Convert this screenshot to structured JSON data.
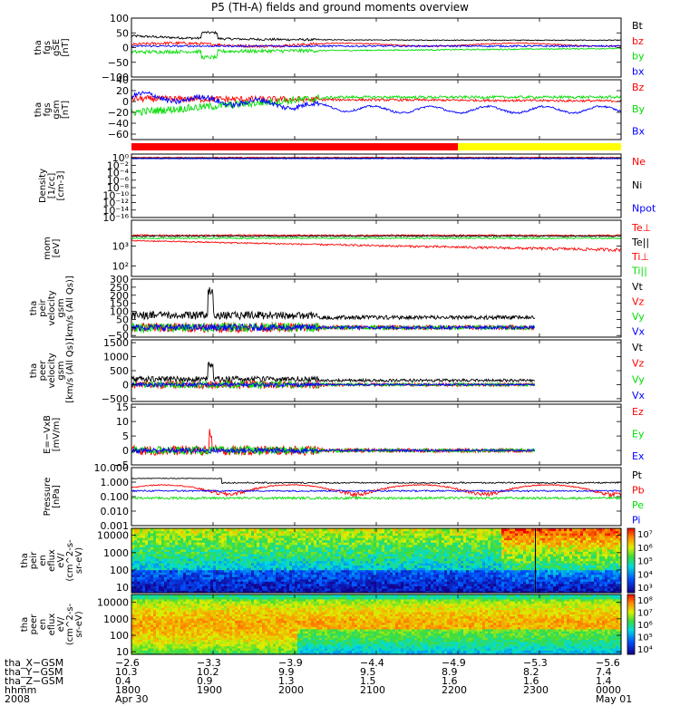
{
  "title": "P5 (TH-A) fields and ground moments overview",
  "colors": {
    "black": "#000000",
    "red": "#ff0000",
    "green": "#00dd00",
    "blue": "#0000ff",
    "yellow": "#ffff00"
  },
  "chart_data": {
    "type": "line",
    "x_time_ticks": [
      "1800",
      "1900",
      "2000",
      "2100",
      "2200",
      "2300",
      "0000"
    ],
    "mode_bar": {
      "segments": [
        {
          "color": "red",
          "from": "1800",
          "to": "2200"
        },
        {
          "color": "yellow",
          "from": "2200",
          "to": "0000"
        }
      ]
    },
    "panels": [
      {
        "id": "fgs-gse",
        "ylabel": [
          "tha",
          "fgs",
          "gSE",
          "[nT]"
        ],
        "ticks": [
          "100",
          "50",
          "0",
          "−50",
          "−100"
        ],
        "ylim": [
          -100,
          100
        ],
        "scale": "linear",
        "legend": [
          {
            "name": "Bt",
            "color": "black"
          },
          {
            "name": "bz",
            "color": "red"
          },
          {
            "name": "by",
            "color": "green"
          },
          {
            "name": "bx",
            "color": "blue"
          }
        ]
      },
      {
        "id": "fgs-gsm",
        "ylabel": [
          "tha",
          "fgs",
          "gsm",
          "[nT]"
        ],
        "ticks": [
          "40",
          "20",
          "0",
          "−20",
          "−40",
          "−60"
        ],
        "ylim": [
          -70,
          40
        ],
        "scale": "linear",
        "legend": [
          {
            "name": "Bz",
            "color": "red"
          },
          {
            "name": "By",
            "color": "green"
          },
          {
            "name": "Bx",
            "color": "blue"
          }
        ]
      },
      {
        "id": "density",
        "ylabel": [
          "Density",
          "[1/cc]",
          "[cm-3]"
        ],
        "ticks": [
          "10⁰",
          "10⁻²",
          "10⁻⁴",
          "10⁻⁶",
          "10⁻⁸",
          "10⁻¹⁰",
          "10⁻¹²",
          "10⁻¹⁴",
          "10⁻¹⁶"
        ],
        "ylim": [
          "1e-16",
          "1e1"
        ],
        "scale": "log",
        "legend": [
          {
            "name": "Ne",
            "color": "red"
          },
          {
            "name": "Ni",
            "color": "black"
          },
          {
            "name": "Npot",
            "color": "blue"
          }
        ]
      },
      {
        "id": "temperature",
        "ylabel": [
          "mom",
          "[eV]"
        ],
        "ticks": [
          "10³",
          "10²"
        ],
        "ylim": [
          "30",
          "2e4"
        ],
        "scale": "log",
        "legend": [
          {
            "name": "Te⊥",
            "color": "red"
          },
          {
            "name": "Te||",
            "color": "black"
          },
          {
            "name": "Ti⊥",
            "color": "red"
          },
          {
            "name": "Ti||",
            "color": "green"
          }
        ]
      },
      {
        "id": "peir-velocity",
        "ylabel": [
          "tha",
          "peir",
          "velocity",
          "gsm",
          "[km/s (All Qs)]"
        ],
        "ticks": [
          "300",
          "250",
          "200",
          "150",
          "100",
          "50",
          "0",
          "−50"
        ],
        "ylim": [
          -60,
          300
        ],
        "scale": "linear",
        "legend": [
          {
            "name": "Vt",
            "color": "black"
          },
          {
            "name": "Vz",
            "color": "red"
          },
          {
            "name": "Vy",
            "color": "green"
          },
          {
            "name": "Vx",
            "color": "blue"
          }
        ]
      },
      {
        "id": "peer-velocity",
        "ylabel": [
          "tha",
          "peer",
          "velocity",
          "gsm",
          "[km/s (All Qs)]"
        ],
        "ticks": [
          "1500",
          "1000",
          "500",
          "0",
          "−500"
        ],
        "ylim": [
          -600,
          1600
        ],
        "scale": "linear",
        "legend": [
          {
            "name": "Vt",
            "color": "black"
          },
          {
            "name": "Vz",
            "color": "red"
          },
          {
            "name": "Vy",
            "color": "green"
          },
          {
            "name": "Vx",
            "color": "blue"
          }
        ]
      },
      {
        "id": "efield",
        "ylabel": [
          "E=−VxB",
          "[mV/m]"
        ],
        "ticks": [
          "15",
          "10",
          "5",
          "0",
          "−5"
        ],
        "ylim": [
          -5,
          16
        ],
        "scale": "linear",
        "legend": [
          {
            "name": "Ez",
            "color": "red"
          },
          {
            "name": "Ey",
            "color": "green"
          },
          {
            "name": "Ex",
            "color": "blue"
          }
        ]
      },
      {
        "id": "pressure",
        "ylabel": [
          "Pressure",
          "[nPa]"
        ],
        "ticks": [
          "10.000",
          "1.000",
          "0.100",
          "0.010",
          "0.001"
        ],
        "ylim": [
          0.001,
          10
        ],
        "scale": "log",
        "legend": [
          {
            "name": "Pt",
            "color": "black"
          },
          {
            "name": "Pb",
            "color": "red"
          },
          {
            "name": "Pe",
            "color": "green"
          },
          {
            "name": "Pi",
            "color": "blue"
          }
        ]
      },
      {
        "id": "peir-spectrogram",
        "type": "heatmap",
        "ylabel": [
          "tha",
          "peir",
          "en",
          "eflux",
          "eV/",
          "(cm^2-s-",
          "sr-eV)"
        ],
        "ticks": [
          "10000",
          "1000",
          "100",
          "10"
        ],
        "ylim": [
          5,
          25000
        ],
        "scale": "log",
        "colorbar_ticks": [
          "10⁷",
          "10⁶",
          "10⁵",
          "10⁴",
          "10³"
        ]
      },
      {
        "id": "peer-spectrogram",
        "type": "heatmap",
        "ylabel": [
          "tha",
          "peer",
          "en",
          "eflux",
          "eV/",
          "(cm^2-s-",
          "sr-eV)"
        ],
        "ticks": [
          "10000",
          "1000",
          "100",
          "10"
        ],
        "ylim": [
          7,
          30000
        ],
        "scale": "log",
        "colorbar_ticks": [
          "10⁸",
          "10⁷",
          "10⁶",
          "10⁵",
          "10⁴"
        ]
      }
    ]
  },
  "ephemeris": {
    "rows": [
      {
        "label": "tha_X−GSM",
        "values": [
          "−2.6",
          "−3.3",
          "−3.9",
          "−4.4",
          "−4.9",
          "−5.3",
          "−5.6"
        ]
      },
      {
        "label": "tha_Y−GSM",
        "values": [
          "10.3",
          "10.2",
          "9.9",
          "9.5",
          "8.9",
          "8.2",
          "7.4"
        ]
      },
      {
        "label": "tha_Z−GSM",
        "values": [
          "0.4",
          "0.9",
          "1.3",
          "1.5",
          "1.6",
          "1.6",
          "1.4"
        ]
      },
      {
        "label": "hhmm",
        "values": [
          "1800",
          "1900",
          "2000",
          "2100",
          "2200",
          "2300",
          "0000"
        ]
      }
    ],
    "year": "2008",
    "date_start": "Apr 30",
    "date_end": "May 01"
  }
}
